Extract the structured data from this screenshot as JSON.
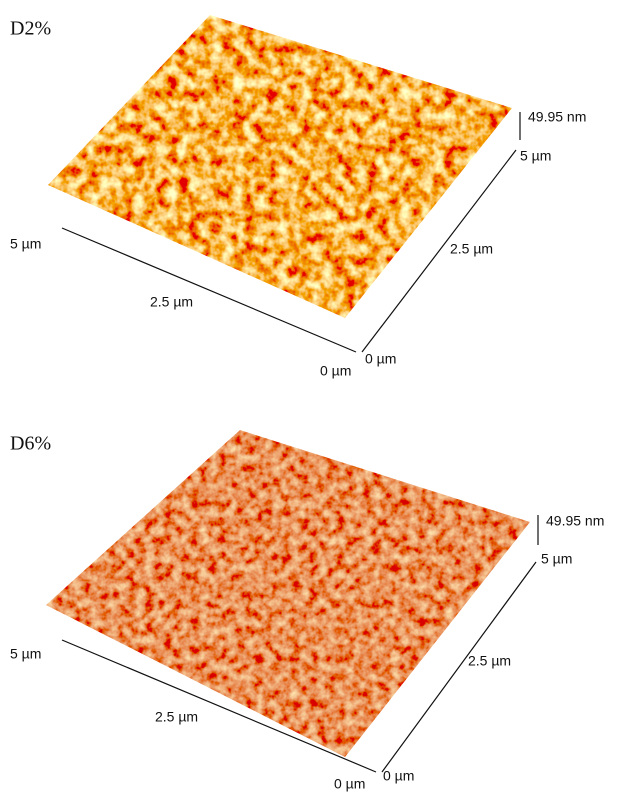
{
  "panels": [
    {
      "label": "D2%",
      "x_axis": {
        "start": "0 µm",
        "mid": "2.5 µm",
        "end": "5 µm"
      },
      "y_axis": {
        "start": "0 µm",
        "mid": "2.5 µm",
        "end": "5 µm"
      },
      "z_label": "49.95 nm"
    },
    {
      "label": "D6%",
      "x_axis": {
        "start": "0 µm",
        "mid": "2.5 µm",
        "end": "5 µm"
      },
      "y_axis": {
        "start": "0 µm",
        "mid": "2.5 µm",
        "end": "5 µm"
      },
      "z_label": "49.95 nm"
    }
  ]
}
